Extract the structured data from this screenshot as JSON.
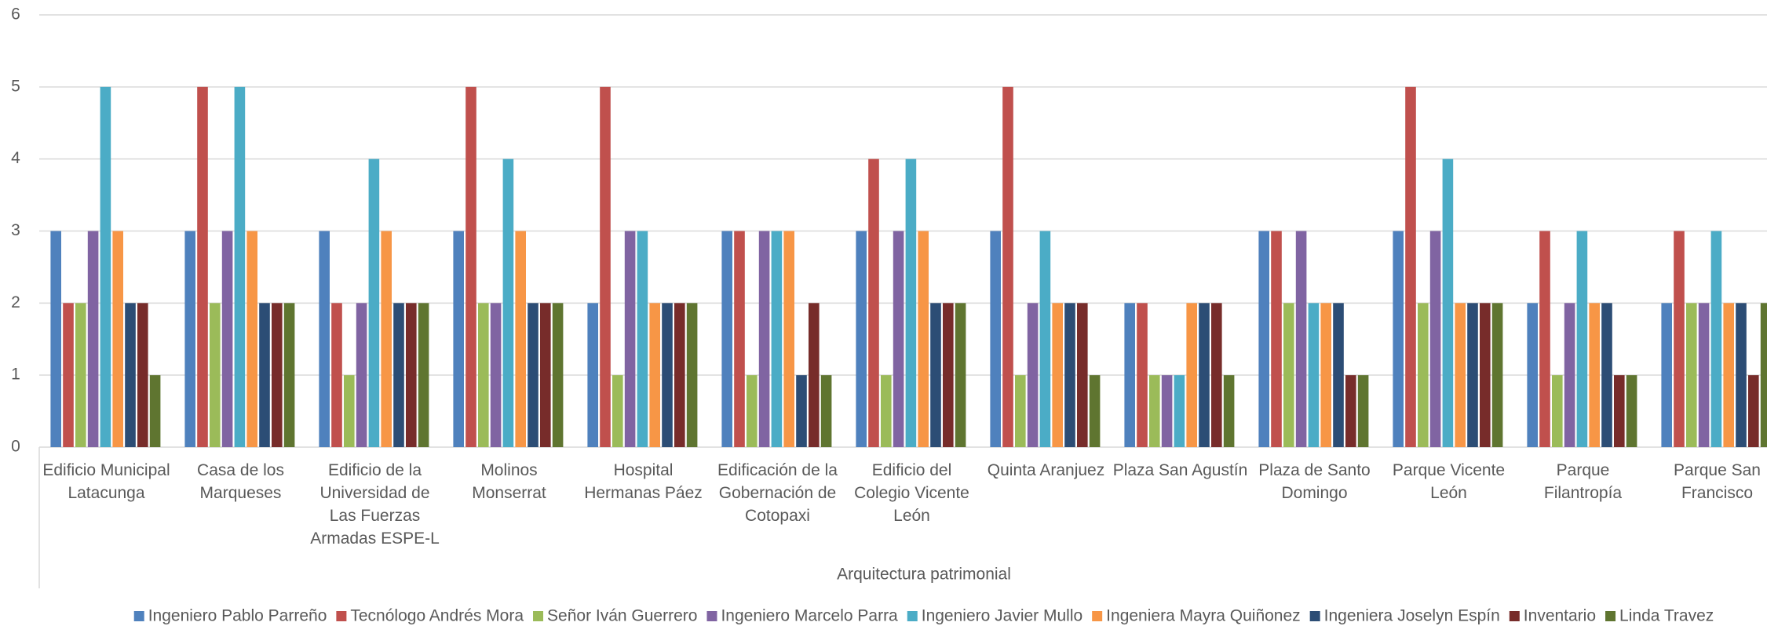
{
  "chart_data": {
    "type": "bar",
    "xlabel": "Arquitectura patrimonial",
    "categories": [
      "Edificio Municipal Latacunga",
      "Casa de los Marqueses",
      "Edificio de la Universidad de Las Fuerzas Armadas ESPE-L",
      "Molinos Monserrat",
      "Hospital Hermanas Páez",
      "Edificación de la Gobernación de Cotopaxi",
      "Edificio del Colegio Vicente León",
      "Quinta Aranjuez",
      "Plaza San Agustín",
      "Plaza de Santo Domingo",
      "Parque Vicente León",
      "Parque Filantropía",
      "Parque San Francisco"
    ],
    "series": [
      {
        "name": "Ingeniero Pablo Parreño",
        "color": "#4f81bd",
        "values": [
          3,
          3,
          3,
          3,
          2,
          3,
          3,
          3,
          2,
          3,
          3,
          2,
          2
        ]
      },
      {
        "name": "Tecnólogo Andrés Mora",
        "color": "#c0504d",
        "values": [
          2,
          5,
          2,
          5,
          5,
          3,
          4,
          5,
          2,
          3,
          5,
          3,
          3
        ]
      },
      {
        "name": "Señor Iván Guerrero",
        "color": "#9bbb59",
        "values": [
          2,
          2,
          1,
          2,
          1,
          1,
          1,
          1,
          1,
          2,
          2,
          1,
          2
        ]
      },
      {
        "name": "Ingeniero Marcelo Parra",
        "color": "#8064a2",
        "values": [
          3,
          3,
          2,
          2,
          3,
          3,
          3,
          2,
          1,
          3,
          3,
          2,
          2
        ]
      },
      {
        "name": "Ingeniero Javier Mullo",
        "color": "#4bacc6",
        "values": [
          5,
          5,
          4,
          4,
          3,
          3,
          4,
          3,
          1,
          2,
          4,
          3,
          3
        ]
      },
      {
        "name": "Ingeniera Mayra Quiñonez",
        "color": "#f79646",
        "values": [
          3,
          3,
          3,
          3,
          2,
          3,
          3,
          2,
          2,
          2,
          2,
          2,
          2
        ]
      },
      {
        "name": "Ingeniera Joselyn Espín",
        "color": "#2c4d75",
        "values": [
          2,
          2,
          2,
          2,
          2,
          1,
          2,
          2,
          2,
          2,
          2,
          2,
          2
        ]
      },
      {
        "name": "Inventario",
        "color": "#772c2a",
        "values": [
          2,
          2,
          2,
          2,
          2,
          2,
          2,
          2,
          2,
          1,
          2,
          1,
          1
        ]
      },
      {
        "name": "Linda Travez",
        "color": "#5f7530",
        "values": [
          1,
          2,
          2,
          2,
          2,
          1,
          2,
          1,
          1,
          1,
          2,
          1,
          2
        ]
      }
    ],
    "ylim": [
      0,
      6
    ],
    "yticks": [
      0,
      1,
      2,
      3,
      4,
      5,
      6
    ],
    "grid": true,
    "legend": "bottom"
  }
}
